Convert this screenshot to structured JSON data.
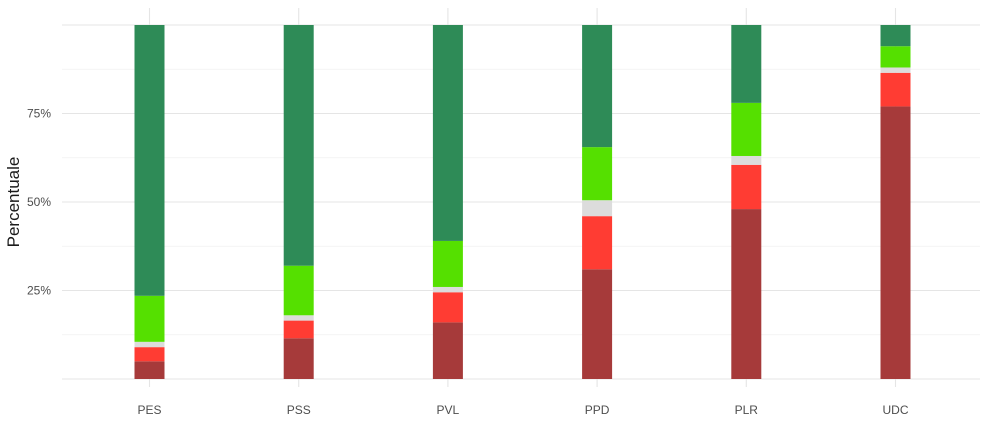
{
  "chart_data": {
    "type": "bar",
    "stacked": true,
    "orientation": "vertical",
    "ylabel": "Percentuale",
    "xlabel": "",
    "ylim": [
      0,
      100
    ],
    "y_ticks": [
      25,
      50,
      75
    ],
    "y_tick_labels": [
      "25%",
      "50%",
      "75%"
    ],
    "grid": true,
    "legend": "none",
    "categories": [
      "PES",
      "PSS",
      "PVL",
      "PPD",
      "PLR",
      "UDC"
    ],
    "series": [
      {
        "color": "#A63A3A",
        "values": [
          5,
          11.5,
          16,
          31,
          48,
          77
        ]
      },
      {
        "color": "#FF3C33",
        "values": [
          4,
          5,
          8.5,
          15,
          12.5,
          9.5
        ]
      },
      {
        "color": "#DCDCDC",
        "values": [
          1.5,
          1.5,
          1.5,
          4.5,
          2.5,
          1.5
        ]
      },
      {
        "color": "#55E000",
        "values": [
          13,
          14,
          13,
          15,
          15,
          6
        ]
      },
      {
        "color": "#2E8B57",
        "values": [
          76.5,
          68,
          61,
          34.5,
          22,
          6
        ]
      }
    ]
  }
}
